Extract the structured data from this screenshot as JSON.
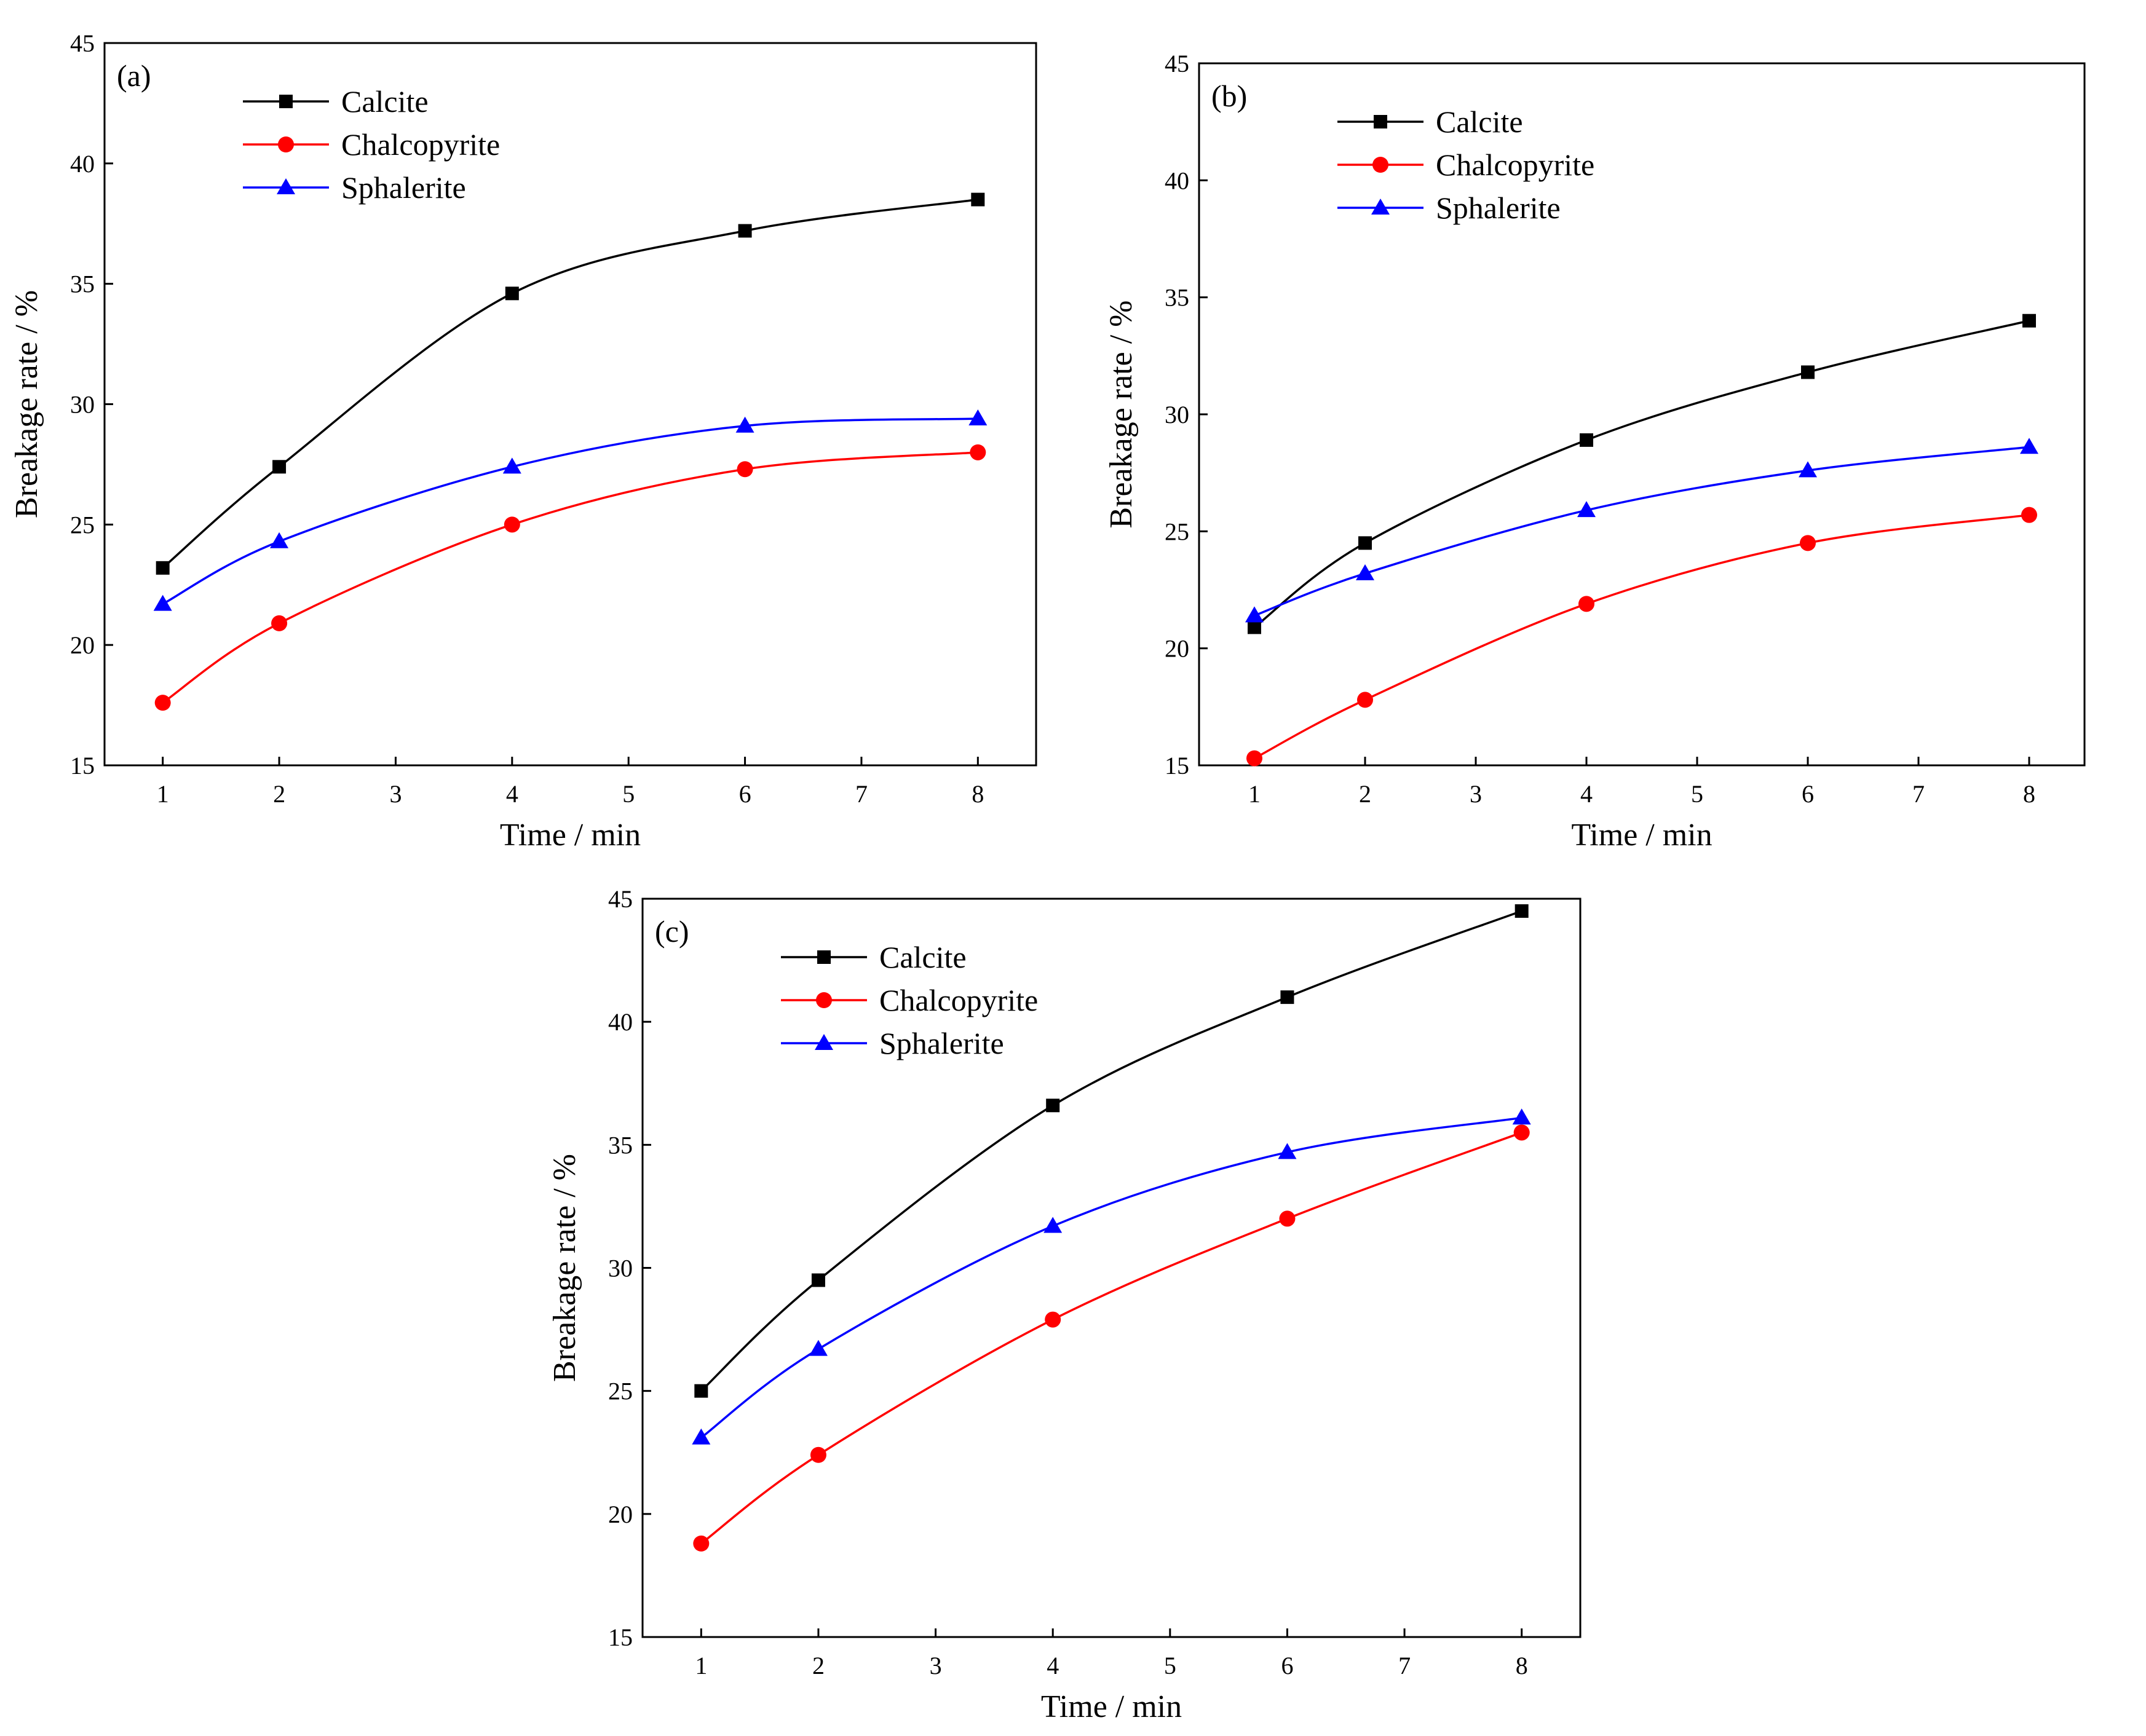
{
  "colors": {
    "Calcite": "#000000",
    "Chalcopyrite": "#ff0000",
    "Sphalerite": "#0000ff"
  },
  "chart_data": [
    {
      "type": "line",
      "panel_label": "(a)",
      "xlabel": "Time / min",
      "ylabel": "Breakage rate / %",
      "xlim": [
        0.5,
        8.5
      ],
      "ylim": [
        15,
        45
      ],
      "xticks": [
        1,
        2,
        3,
        4,
        5,
        6,
        7,
        8
      ],
      "yticks": [
        15,
        20,
        25,
        30,
        35,
        40,
        45
      ],
      "x": [
        1,
        2,
        4,
        6,
        8
      ],
      "legend_position": "top-left",
      "series": [
        {
          "name": "Calcite",
          "marker": "square",
          "values": [
            23.2,
            27.4,
            34.6,
            37.2,
            38.5
          ]
        },
        {
          "name": "Chalcopyrite",
          "marker": "circle",
          "values": [
            17.6,
            20.9,
            25.0,
            27.3,
            28.0
          ]
        },
        {
          "name": "Sphalerite",
          "marker": "triangle",
          "values": [
            21.7,
            24.3,
            27.4,
            29.1,
            29.4
          ]
        }
      ]
    },
    {
      "type": "line",
      "panel_label": "(b)",
      "xlabel": "Time / min",
      "ylabel": "Breakage rate / %",
      "xlim": [
        0.5,
        8.5
      ],
      "ylim": [
        15,
        45
      ],
      "xticks": [
        1,
        2,
        3,
        4,
        5,
        6,
        7,
        8
      ],
      "yticks": [
        15,
        20,
        25,
        30,
        35,
        40,
        45
      ],
      "x": [
        1,
        2,
        4,
        6,
        8
      ],
      "legend_position": "top-left",
      "series": [
        {
          "name": "Calcite",
          "marker": "square",
          "values": [
            20.9,
            24.5,
            28.9,
            31.8,
            34.0
          ]
        },
        {
          "name": "Chalcopyrite",
          "marker": "circle",
          "values": [
            15.3,
            17.8,
            21.9,
            24.5,
            25.7
          ]
        },
        {
          "name": "Sphalerite",
          "marker": "triangle",
          "values": [
            21.4,
            23.2,
            25.9,
            27.6,
            28.6
          ]
        }
      ]
    },
    {
      "type": "line",
      "panel_label": "(c)",
      "xlabel": "Time / min",
      "ylabel": "Breakage rate / %",
      "xlim": [
        0.5,
        8.5
      ],
      "ylim": [
        15,
        45
      ],
      "xticks": [
        1,
        2,
        3,
        4,
        5,
        6,
        7,
        8
      ],
      "yticks": [
        15,
        20,
        25,
        30,
        35,
        40,
        45
      ],
      "x": [
        1,
        2,
        4,
        6,
        8
      ],
      "legend_position": "top-left",
      "series": [
        {
          "name": "Calcite",
          "marker": "square",
          "values": [
            25.0,
            29.5,
            36.6,
            41.0,
            44.5
          ]
        },
        {
          "name": "Chalcopyrite",
          "marker": "circle",
          "values": [
            18.8,
            22.4,
            27.9,
            32.0,
            35.5
          ]
        },
        {
          "name": "Sphalerite",
          "marker": "triangle",
          "values": [
            23.1,
            26.7,
            31.7,
            34.7,
            36.1
          ]
        }
      ]
    }
  ]
}
